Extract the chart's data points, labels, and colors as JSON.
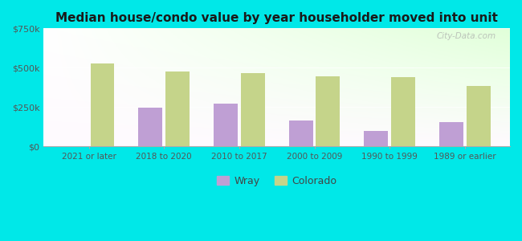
{
  "title": "Median house/condo value by year householder moved into unit",
  "categories": [
    "2021 or later",
    "2018 to 2020",
    "2010 to 2017",
    "2000 to 2009",
    "1990 to 1999",
    "1989 or earlier"
  ],
  "wray_values": [
    null,
    248000,
    272000,
    168000,
    97000,
    155000
  ],
  "colorado_values": [
    527000,
    478000,
    468000,
    448000,
    443000,
    385000
  ],
  "wray_color": "#bf9fd4",
  "colorado_color": "#c5d48a",
  "background_color": "#00e8e8",
  "ylim": [
    0,
    750000
  ],
  "yticks": [
    0,
    250000,
    500000,
    750000
  ],
  "ytick_labels": [
    "$0",
    "$250k",
    "$500k",
    "$750k"
  ],
  "bar_width": 0.32,
  "legend_labels": [
    "Wray",
    "Colorado"
  ],
  "watermark": "City-Data.com"
}
